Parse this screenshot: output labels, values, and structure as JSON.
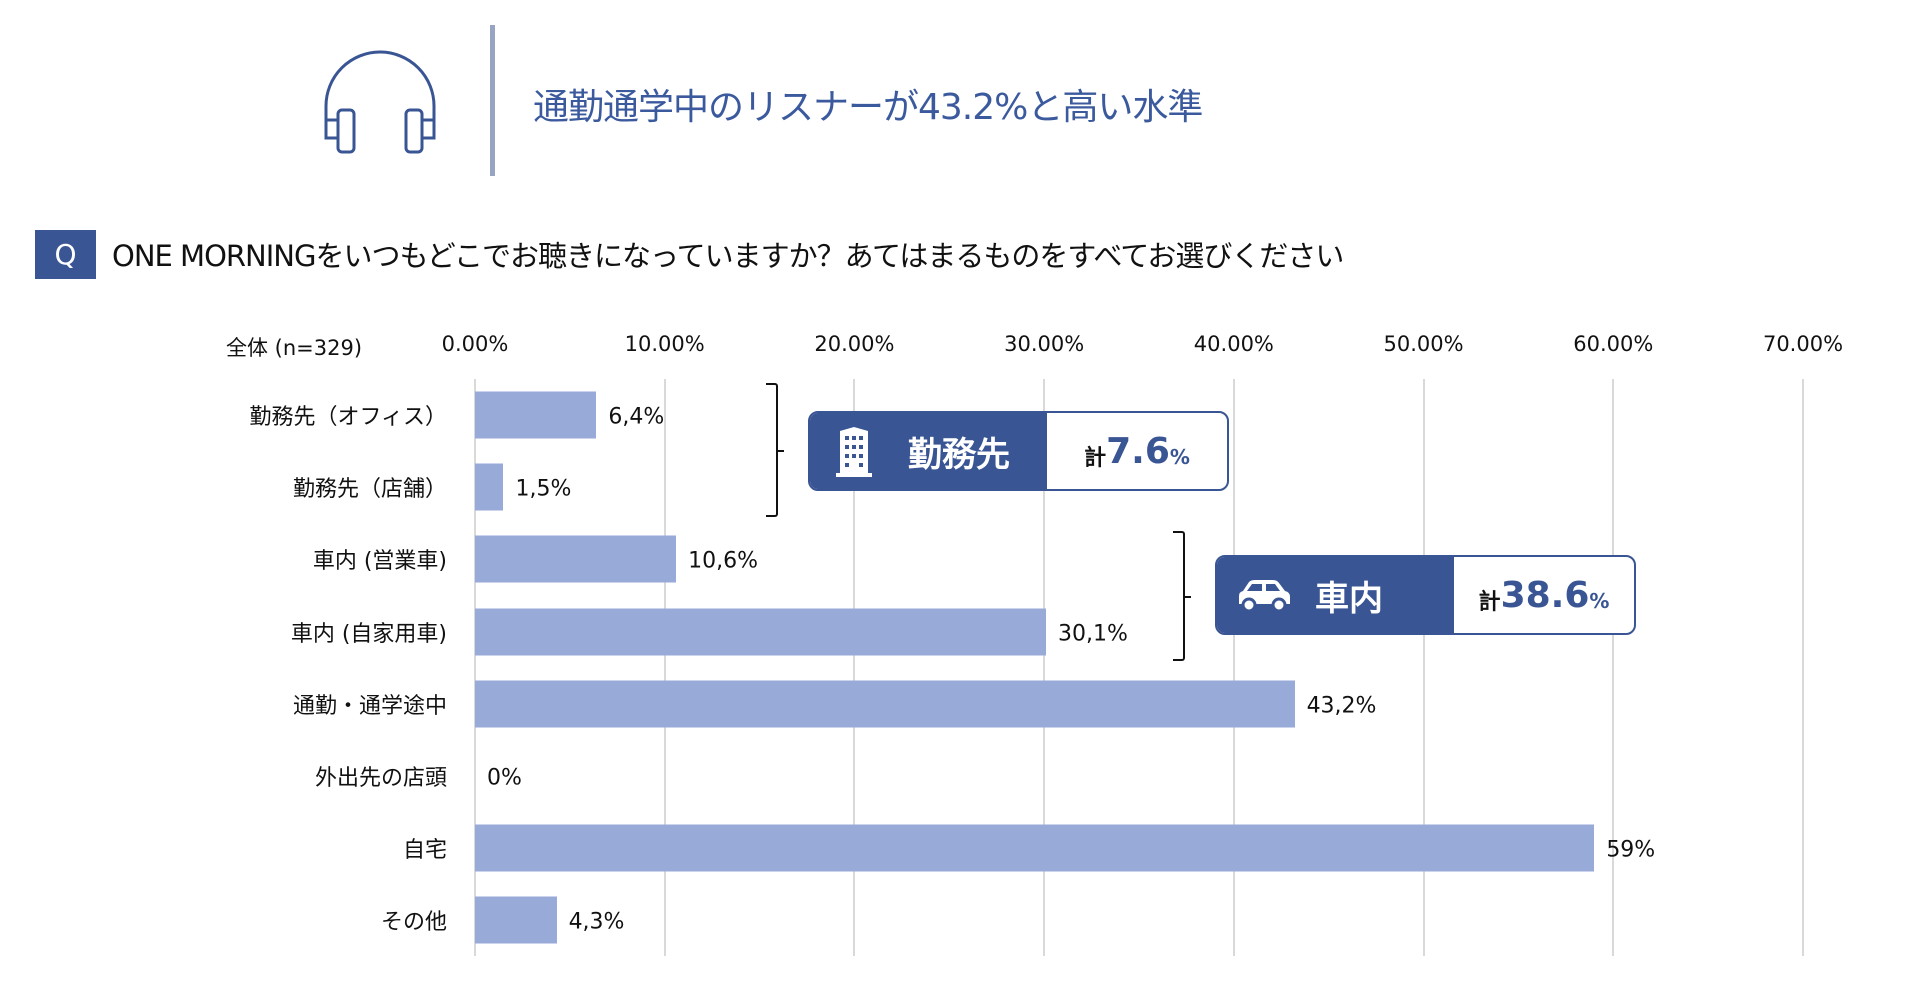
{
  "header": {
    "icon": "headphones-icon",
    "title": "通勤通学中のリスナーが43.2%と高い水準"
  },
  "question": {
    "badge": "Q",
    "text": "ONE MORNINGをいつもどこでお聴きになっていますか？あてはまるものをすべてお選びください"
  },
  "colors": {
    "bar": "#97aad8",
    "accent": "#3a5594",
    "title": "#3b5a9e"
  },
  "chart_data": {
    "type": "bar",
    "orientation": "horizontal",
    "group_label": "全体 (n=329)",
    "categories": [
      "勤務先（オフィス）",
      "勤務先（店舗）",
      "車内 (営業車)",
      "車内 (自家用車)",
      "通勤・通学途中",
      "外出先の店頭",
      "自宅",
      "その他"
    ],
    "values": [
      6.4,
      1.5,
      10.6,
      30.1,
      43.2,
      0,
      59,
      4.3
    ],
    "value_labels": [
      "6,4%",
      "1,5%",
      "10,6%",
      "30,1%",
      "43,2%",
      "0%",
      "59%",
      "4,3%"
    ],
    "xlim": [
      0,
      70
    ],
    "tick_labels": [
      "0.00%",
      "10.00%",
      "20.00%",
      "30.00%",
      "40.00%",
      "50.00%",
      "60.00%",
      "70.00%"
    ],
    "grid": true,
    "annotations": [
      {
        "icon": "building-icon",
        "label": "勤務先",
        "prefix": "計",
        "value": "7.6",
        "unit": "%"
      },
      {
        "icon": "car-icon",
        "label": "車内",
        "prefix": "計",
        "value": "38.6",
        "unit": "%"
      }
    ]
  }
}
